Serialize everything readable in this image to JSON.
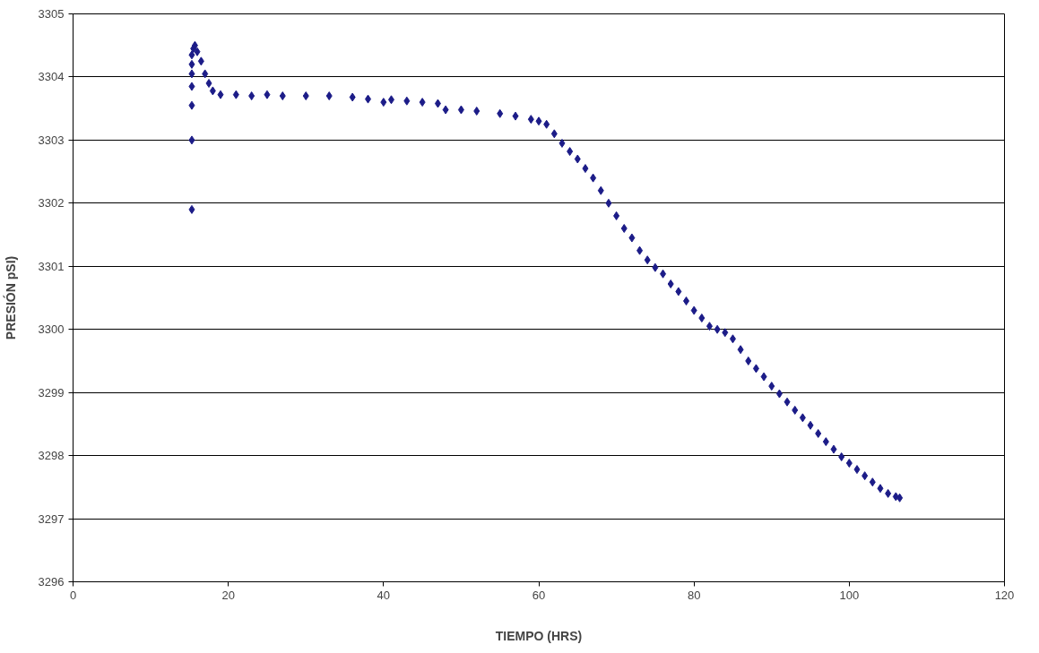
{
  "chart_data": {
    "type": "scatter",
    "xlabel": "TIEMPO (HRS)",
    "ylabel": "PRESIÓN pSI)",
    "xlim": [
      0,
      120
    ],
    "ylim": [
      3296,
      3305
    ],
    "xticks": [
      0,
      20,
      40,
      60,
      80,
      100,
      120
    ],
    "yticks": [
      3296,
      3297,
      3298,
      3299,
      3300,
      3301,
      3302,
      3303,
      3304,
      3305
    ],
    "grid": "y",
    "marker": "diamond",
    "series": [
      {
        "color": "#1c1c88",
        "x": [
          15.3,
          15.3,
          15.3,
          15.3,
          15.3,
          15.3,
          15.3,
          15.5,
          15.7,
          16.0,
          16.5,
          17.0,
          17.5,
          18.0,
          19,
          21,
          23,
          25,
          27,
          30,
          33,
          36,
          38,
          40,
          41,
          43,
          45,
          47,
          48,
          50,
          52,
          55,
          57,
          59,
          60,
          61,
          62,
          63,
          64,
          65,
          66,
          67,
          68,
          69,
          70,
          71,
          72,
          73,
          74,
          75,
          76,
          77,
          78,
          79,
          80,
          81,
          82,
          83,
          84,
          85,
          86,
          87,
          88,
          89,
          90,
          91,
          92,
          93,
          94,
          95,
          96,
          97,
          98,
          99,
          100,
          101,
          102,
          103,
          104,
          105,
          106,
          106.5
        ],
        "values": [
          3301.9,
          3303.0,
          3303.55,
          3303.85,
          3304.05,
          3304.2,
          3304.35,
          3304.45,
          3304.5,
          3304.4,
          3304.25,
          3304.05,
          3303.9,
          3303.78,
          3303.72,
          3303.72,
          3303.7,
          3303.72,
          3303.7,
          3303.7,
          3303.7,
          3303.68,
          3303.65,
          3303.6,
          3303.64,
          3303.62,
          3303.6,
          3303.58,
          3303.48,
          3303.48,
          3303.46,
          3303.42,
          3303.38,
          3303.33,
          3303.3,
          3303.25,
          3303.1,
          3302.95,
          3302.82,
          3302.7,
          3302.55,
          3302.4,
          3302.2,
          3302.0,
          3301.8,
          3301.6,
          3301.45,
          3301.25,
          3301.1,
          3300.98,
          3300.88,
          3300.72,
          3300.6,
          3300.45,
          3300.3,
          3300.18,
          3300.05,
          3300.0,
          3299.95,
          3299.85,
          3299.68,
          3299.5,
          3299.38,
          3299.25,
          3299.1,
          3298.98,
          3298.85,
          3298.72,
          3298.6,
          3298.48,
          3298.35,
          3298.22,
          3298.1,
          3297.98,
          3297.88,
          3297.78,
          3297.68,
          3297.58,
          3297.48,
          3297.4,
          3297.35,
          3297.33
        ]
      }
    ]
  }
}
